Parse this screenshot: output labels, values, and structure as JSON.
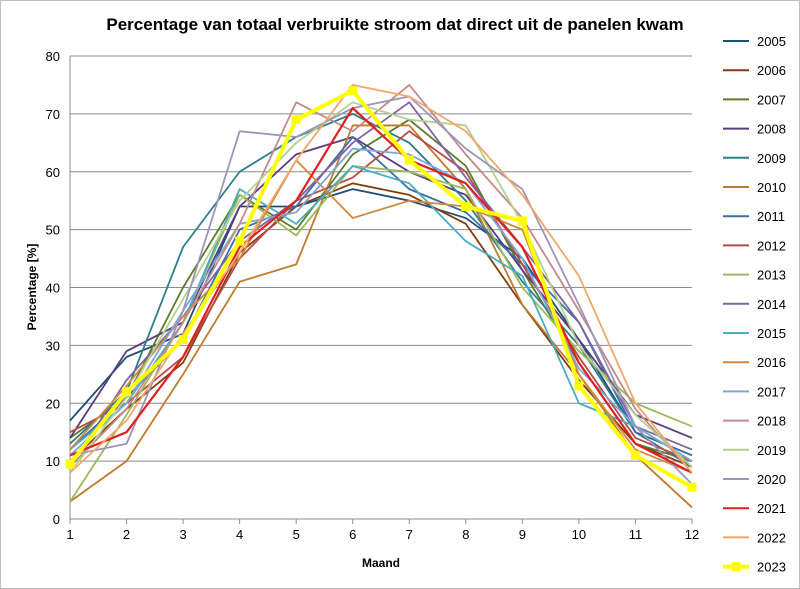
{
  "chart_data": {
    "type": "line",
    "title": "Percentage van totaal verbruikte stroom dat direct uit de panelen kwam",
    "xlabel": "Maand",
    "ylabel": "Percentage [%]",
    "ylim": [
      0,
      80
    ],
    "yticks": [
      0,
      10,
      20,
      30,
      40,
      50,
      60,
      70,
      80
    ],
    "xticks": [
      "1",
      "2",
      "3",
      "4",
      "5",
      "6",
      "7",
      "8",
      "9",
      "10",
      "11",
      "12"
    ],
    "grid": "horizontal",
    "legend_position": "right",
    "x": [
      1,
      2,
      3,
      4,
      5,
      6,
      7,
      8,
      9,
      10,
      11,
      12
    ],
    "series": [
      {
        "name": "2005",
        "color": "#1f4e79",
        "values": [
          17,
          28,
          32,
          54,
          54,
          57,
          55,
          52,
          45,
          31,
          15,
          11
        ]
      },
      {
        "name": "2006",
        "color": "#843c0c",
        "values": [
          10,
          19,
          27,
          46,
          54,
          58,
          56,
          51,
          37,
          24,
          13,
          9
        ]
      },
      {
        "name": "2007",
        "color": "#5b7a2a",
        "values": [
          14,
          21,
          40,
          56,
          50,
          63,
          69,
          61,
          43,
          27,
          13,
          10
        ]
      },
      {
        "name": "2008",
        "color": "#5a3c7f",
        "values": [
          14,
          29,
          34,
          54,
          63,
          66,
          60,
          56,
          43,
          31,
          18,
          14
        ]
      },
      {
        "name": "2009",
        "color": "#2e7d8c",
        "values": [
          13,
          22,
          47,
          60,
          66,
          70,
          65,
          55,
          41,
          30,
          15,
          9
        ]
      },
      {
        "name": "2010",
        "color": "#c07a2c",
        "values": [
          3,
          10,
          25,
          41,
          44,
          68,
          68,
          57,
          37,
          25,
          11,
          2
        ]
      },
      {
        "name": "2011",
        "color": "#3c6eaa",
        "values": [
          12,
          21,
          31,
          50,
          54,
          66,
          57,
          53,
          44,
          34,
          15,
          11
        ]
      },
      {
        "name": "2012",
        "color": "#b94a48",
        "values": [
          15,
          20,
          28,
          45,
          55,
          59,
          67,
          60,
          44,
          28,
          14,
          10
        ]
      },
      {
        "name": "2013",
        "color": "#9bbb59",
        "values": [
          3,
          18,
          34,
          56,
          49,
          61,
          60,
          57,
          40,
          29,
          20,
          16
        ]
      },
      {
        "name": "2014",
        "color": "#8064a2",
        "values": [
          9,
          24,
          35,
          48,
          55,
          65,
          72,
          59,
          47,
          34,
          16,
          12
        ]
      },
      {
        "name": "2015",
        "color": "#4bacc6",
        "values": [
          12,
          20,
          34,
          57,
          51,
          61,
          58,
          48,
          42,
          20,
          16,
          10
        ]
      },
      {
        "name": "2016",
        "color": "#d08a3a",
        "values": [
          12,
          23,
          35,
          45,
          62,
          52,
          55,
          54,
          50,
          25,
          12,
          8
        ]
      },
      {
        "name": "2017",
        "color": "#7da7d9",
        "values": [
          11,
          20,
          36,
          51,
          53,
          64,
          63,
          58,
          45,
          26,
          16,
          10
        ]
      },
      {
        "name": "2018",
        "color": "#c48a8a",
        "values": [
          9,
          19,
          34,
          51,
          72,
          67,
          75,
          63,
          52,
          36,
          19,
          8
        ]
      },
      {
        "name": "2019",
        "color": "#b5cf8f",
        "values": [
          8,
          21,
          38,
          55,
          65,
          72,
          69,
          68,
          51,
          30,
          18,
          9
        ]
      },
      {
        "name": "2020",
        "color": "#9e94b8",
        "values": [
          11,
          13,
          36,
          67,
          66,
          71,
          73,
          64,
          57,
          37,
          16,
          6
        ]
      },
      {
        "name": "2021",
        "color": "#e02020",
        "values": [
          11,
          15,
          28,
          47,
          55,
          71,
          62,
          58,
          47,
          27,
          13,
          8
        ]
      },
      {
        "name": "2022",
        "color": "#f4a76a",
        "values": [
          8,
          17,
          32,
          46,
          62,
          75,
          73,
          67,
          56,
          42,
          20,
          8
        ]
      },
      {
        "name": "2023",
        "color": "#ffff00",
        "values": [
          9.5,
          22,
          31,
          48,
          69,
          74,
          62,
          54,
          51.5,
          23,
          11,
          5.5
        ]
      }
    ]
  }
}
